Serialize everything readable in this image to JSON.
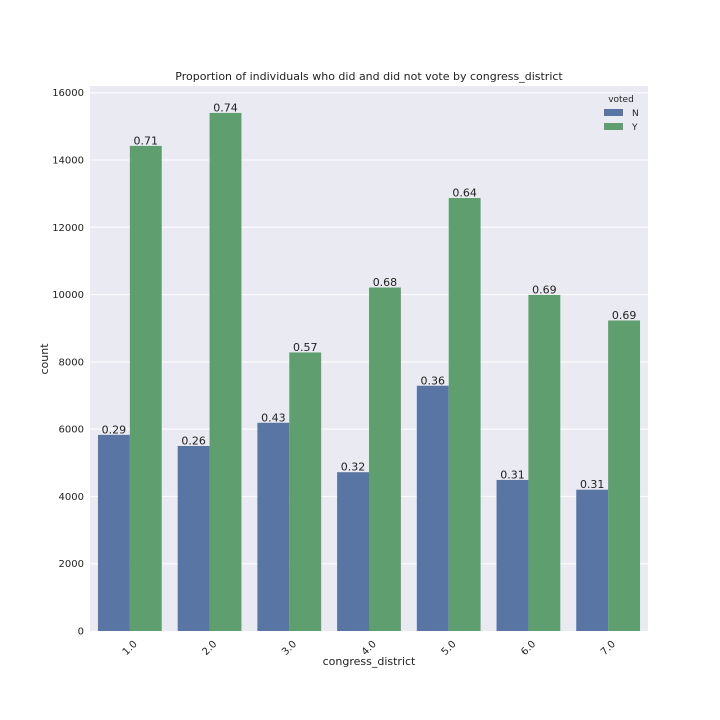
{
  "chart_data": {
    "type": "bar",
    "title": "Proportion of individuals who did and did not vote by congress_district",
    "xlabel": "congress_district",
    "ylabel": "count",
    "categories": [
      "1.0",
      "2.0",
      "3.0",
      "4.0",
      "5.0",
      "6.0",
      "7.0"
    ],
    "ylim": [
      0,
      16200
    ],
    "yticks": [
      0,
      2000,
      4000,
      6000,
      8000,
      10000,
      12000,
      14000,
      16000
    ],
    "grid": true,
    "legend": {
      "title": "voted",
      "position": "top-right"
    },
    "series": [
      {
        "name": "N",
        "color": "#5975a4",
        "values": [
          5830,
          5500,
          6190,
          4720,
          7290,
          4490,
          4200
        ],
        "labels": [
          "0.29",
          "0.26",
          "0.43",
          "0.32",
          "0.36",
          "0.31",
          "0.31"
        ]
      },
      {
        "name": "Y",
        "color": "#5f9e6e",
        "values": [
          14420,
          15400,
          8280,
          10210,
          12870,
          9990,
          9230
        ],
        "labels": [
          "0.71",
          "0.74",
          "0.57",
          "0.68",
          "0.64",
          "0.69",
          "0.69"
        ]
      }
    ],
    "background": "#eaeaf2"
  }
}
